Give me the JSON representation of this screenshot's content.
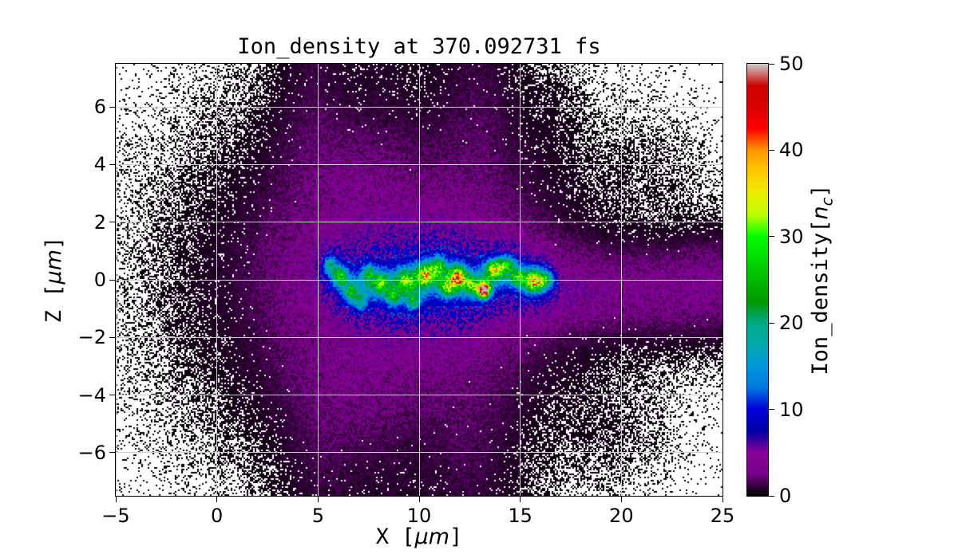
{
  "chart_data": {
    "type": "heatmap",
    "title": "Ion_density at 370.092731 fs",
    "xlabel": {
      "prefix": "X [",
      "math": "μm",
      "suffix": "]"
    },
    "ylabel": {
      "prefix": "Z [",
      "math": "μm",
      "suffix": "]"
    },
    "xlim": [
      -5,
      25
    ],
    "ylim": [
      -7.5,
      7.5
    ],
    "xticks": {
      "values": [
        -5,
        0,
        5,
        10,
        15,
        20,
        25
      ],
      "labels": [
        "−5",
        "0",
        "5",
        "10",
        "15",
        "20",
        "25"
      ]
    },
    "yticks": {
      "values": [
        6,
        4,
        2,
        0,
        -2,
        -4,
        -6
      ],
      "labels": [
        "6",
        "4",
        "2",
        "0",
        "−2",
        "−4",
        "−6"
      ]
    },
    "grid": true,
    "grid_color": "#cfcfcf",
    "zero_color": "#ffffff",
    "description": "2D PIC-simulation ion density map: diffuse magenta plasma cloud (~2-5 nc) spanning x≈3-17 μm and |z|<4 μm inside a speckled black low-density halo; a bright wandering filament along z≈0 from x≈5.5-16.5 μm with blue/cyan/green hotspots (10-25 nc) and a red core (~46 nc) near x≈13.2 μm; a mottled purple jet extends rightward to x=25 μm near z≈-0.5 μm.",
    "colorbar": {
      "label": {
        "prefix": "Ion_density[",
        "math": "n",
        "sub": "c",
        "suffix": "]"
      },
      "vmin": 0,
      "vmax": 50,
      "ticks": {
        "values": [
          0,
          10,
          20,
          30,
          40,
          50
        ],
        "labels": [
          "0",
          "10",
          "20",
          "30",
          "40",
          "50"
        ]
      },
      "colormap": "nipy_spectral",
      "colormap_stops": [
        [
          0.0,
          0.0,
          0.0,
          0.0
        ],
        [
          0.05,
          0.4667,
          0.0,
          0.5333
        ],
        [
          0.1,
          0.5333,
          0.0,
          0.6
        ],
        [
          0.15,
          0.0,
          0.0,
          0.6533
        ],
        [
          0.2,
          0.0,
          0.0,
          0.8667
        ],
        [
          0.25,
          0.0,
          0.4667,
          0.8667
        ],
        [
          0.3,
          0.0,
          0.6,
          0.8667
        ],
        [
          0.35,
          0.0,
          0.6667,
          0.6667
        ],
        [
          0.4,
          0.0,
          0.6667,
          0.5333
        ],
        [
          0.45,
          0.0,
          0.6,
          0.0
        ],
        [
          0.5,
          0.0,
          0.7333,
          0.0
        ],
        [
          0.55,
          0.0,
          0.8667,
          0.0
        ],
        [
          0.6,
          0.0,
          1.0,
          0.0
        ],
        [
          0.65,
          0.7333,
          1.0,
          0.0
        ],
        [
          0.7,
          0.9333,
          0.9333,
          0.0
        ],
        [
          0.75,
          1.0,
          0.8,
          0.0
        ],
        [
          0.8,
          1.0,
          0.6,
          0.0
        ],
        [
          0.85,
          1.0,
          0.0,
          0.0
        ],
        [
          0.9,
          0.8667,
          0.0,
          0.0
        ],
        [
          0.95,
          0.8,
          0.0,
          0.0
        ],
        [
          1.0,
          0.8,
          0.8,
          0.8
        ]
      ]
    },
    "field": {
      "seed": 20427,
      "background": 0.006,
      "occupancy_k": 3.5,
      "noise": {
        "min": 0.45,
        "span": 1.25
      },
      "gaussians": [
        [
          10.0,
          0.0,
          5.2,
          2.7,
          3.0
        ],
        [
          9.5,
          0.0,
          6.8,
          4.2,
          1.3
        ],
        [
          10.5,
          0.0,
          4.8,
          1.3,
          2.2
        ],
        [
          9.0,
          0.0,
          7.3,
          5.4,
          0.8
        ],
        [
          8.0,
          0.0,
          9.0,
          6.5,
          0.22
        ],
        [
          2.0,
          0.0,
          3.5,
          4.5,
          0.18
        ],
        [
          -1.5,
          0.3,
          3.0,
          2.8,
          0.05
        ],
        [
          7.0,
          3.6,
          2.6,
          1.6,
          1.1
        ],
        [
          7.0,
          -3.8,
          2.6,
          1.7,
          1.1
        ],
        [
          4.8,
          6.2,
          1.7,
          3.2,
          0.85
        ],
        [
          12.9,
          5.8,
          2.1,
          4.0,
          0.95
        ],
        [
          5.4,
          -6.2,
          1.9,
          3.2,
          0.85
        ],
        [
          12.5,
          -5.8,
          2.3,
          4.2,
          0.95
        ],
        [
          8.2,
          6.9,
          1.6,
          2.2,
          0.4
        ],
        [
          8.6,
          -6.9,
          1.7,
          2.2,
          0.4
        ],
        [
          17.0,
          -0.4,
          3.0,
          1.2,
          2.0
        ],
        [
          20.5,
          -0.4,
          3.0,
          1.3,
          1.7
        ],
        [
          23.5,
          -0.3,
          2.6,
          1.4,
          1.7
        ],
        [
          25.0,
          -0.1,
          2.0,
          1.6,
          1.5
        ],
        [
          20.0,
          -0.5,
          5.0,
          2.4,
          0.3
        ],
        [
          21.5,
          3.9,
          2.6,
          1.4,
          0.18
        ],
        [
          19.5,
          -5.4,
          2.6,
          1.6,
          0.2
        ],
        [
          16.8,
          5.5,
          1.2,
          1.8,
          0.25
        ],
        [
          3.8,
          0.0,
          1.8,
          4.6,
          0.55
        ]
      ],
      "filament_range": [
        5.3,
        16.6
      ],
      "centroid_sigma": 0.9,
      "sheath": [
        {
          "a": 7.0,
          "sz": 0.5
        },
        {
          "a": 3.5,
          "sz": 1.05
        }
      ],
      "spots": [
        [
          5.6,
          0.55,
          10,
          0.3,
          0.3
        ],
        [
          6.1,
          0.15,
          13,
          0.32,
          0.3
        ],
        [
          6.6,
          -0.45,
          11,
          0.3,
          0.3
        ],
        [
          7.1,
          -0.8,
          9,
          0.3,
          0.28
        ],
        [
          7.5,
          0.25,
          12,
          0.3,
          0.3
        ],
        [
          8.1,
          -0.1,
          14,
          0.4,
          0.33
        ],
        [
          8.7,
          -0.6,
          11,
          0.3,
          0.28
        ],
        [
          9.3,
          0.0,
          16,
          0.45,
          0.38
        ],
        [
          9.7,
          -0.75,
          12,
          0.3,
          0.28
        ],
        [
          10.3,
          0.2,
          22,
          0.5,
          0.36
        ],
        [
          11.0,
          0.5,
          13,
          0.34,
          0.3
        ],
        [
          11.4,
          -0.3,
          15,
          0.4,
          0.33
        ],
        [
          11.9,
          0.1,
          26,
          0.42,
          0.36
        ],
        [
          12.6,
          -0.2,
          14,
          0.34,
          0.3
        ],
        [
          13.2,
          -0.35,
          46,
          0.3,
          0.26
        ],
        [
          13.7,
          0.35,
          20,
          0.4,
          0.34
        ],
        [
          14.3,
          0.5,
          15,
          0.38,
          0.3
        ],
        [
          14.9,
          0.05,
          14,
          0.4,
          0.3
        ],
        [
          15.7,
          -0.05,
          24,
          0.46,
          0.36
        ],
        [
          16.3,
          0.0,
          12,
          0.34,
          0.28
        ]
      ]
    }
  }
}
